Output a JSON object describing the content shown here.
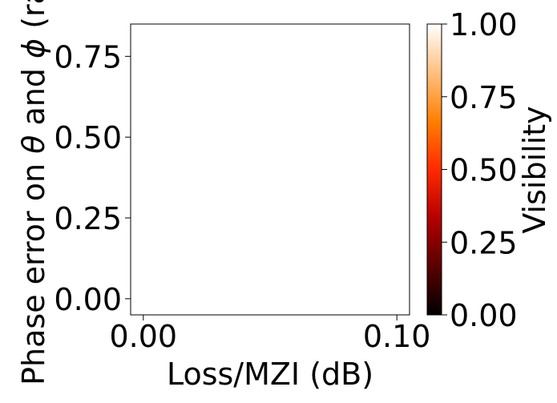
{
  "chart_data": {
    "type": "heatmap",
    "title": "",
    "xlabel": "Loss/MZI (dB)",
    "ylabel_prefix": "Phase error on ",
    "ylabel_theta": "θ",
    "ylabel_and": " and ",
    "ylabel_phi": "ϕ",
    "ylabel_suffix": " (rad)",
    "xlim": [
      -0.005,
      0.105
    ],
    "ylim": [
      -0.05,
      0.85
    ],
    "xticks": [
      0.0,
      0.1
    ],
    "xtick_labels": [
      "0.00",
      "0.10"
    ],
    "yticks": [
      0.0,
      0.25,
      0.5,
      0.75
    ],
    "ytick_labels": [
      "0.00",
      "0.25",
      "0.50",
      "0.75"
    ],
    "grid": false,
    "values": [],
    "colorbar": {
      "label": "Visibility",
      "colormap": "gist_heat",
      "range": [
        0.0,
        1.0
      ],
      "ticks": [
        0.0,
        0.25,
        0.5,
        0.75,
        1.0
      ],
      "tick_labels": [
        "0.00",
        "0.25",
        "0.50",
        "0.75",
        "1.00"
      ],
      "gradient_colors": [
        "#000000",
        "#5a0000",
        "#b40000",
        "#ff2a00",
        "#ff8000",
        "#ffc080",
        "#ffffff"
      ]
    }
  }
}
